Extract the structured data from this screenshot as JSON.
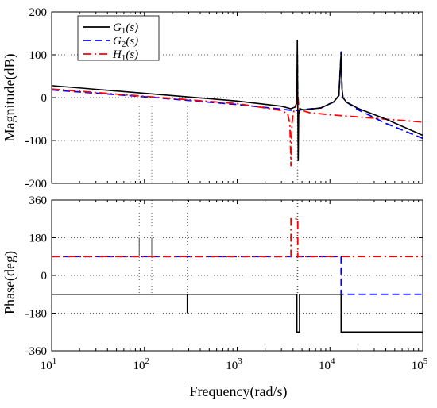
{
  "chart_data": [
    {
      "type": "line",
      "ylabel": "Magnitude(dB)",
      "xscale": "log",
      "xlim": [
        10,
        100000
      ],
      "ylim": [
        -200,
        200
      ],
      "yticks": [
        -200,
        -100,
        0,
        100,
        200
      ],
      "grid": "dotted reference lines at y=0, y=100, y=-100 and at notable frequencies",
      "legend": {
        "placement": "top-left",
        "entries": [
          {
            "base": "G",
            "sub": "1",
            "arg": "(s)"
          },
          {
            "base": "G",
            "sub": "2",
            "arg": "(s)"
          },
          {
            "base": "H",
            "sub": "1",
            "arg": "(s)"
          }
        ]
      },
      "series": [
        {
          "name": "G1(s)",
          "color": "#000000",
          "dash": "solid",
          "x": [
            10,
            100,
            1000,
            3000,
            3800,
            4200,
            4400,
            4450,
            4500,
            4550,
            4600,
            4700,
            4800,
            4900,
            5000,
            5500,
            8000,
            11000,
            12500,
            13200,
            13500,
            13800,
            15000,
            20000,
            40000,
            100000
          ],
          "y": [
            28,
            10,
            -8,
            -20,
            -26,
            -22,
            -12,
            135,
            -15,
            -148,
            -40,
            -28,
            -26,
            -27,
            -28,
            -28,
            -24,
            -10,
            5,
            105,
            20,
            0,
            -10,
            -25,
            -50,
            -88
          ]
        },
        {
          "name": "G2(s)",
          "color": "#0000ff",
          "dash": "dashed",
          "x": [
            10,
            100,
            1000,
            3000,
            4000,
            4500,
            5000,
            8000,
            11000,
            12500,
            13200,
            13500,
            13800,
            15000,
            20000,
            40000,
            100000
          ],
          "y": [
            18,
            2,
            -16,
            -27,
            -30,
            -30,
            -28,
            -24,
            -10,
            5,
            108,
            20,
            0,
            -10,
            -28,
            -60,
            -95
          ]
        },
        {
          "name": "H1(s)",
          "color": "#ff0000",
          "dash": "dashdot",
          "x": [
            10,
            100,
            1000,
            3000,
            3500,
            3700,
            3800,
            3900,
            4000,
            4100,
            4200,
            4300,
            4400,
            4460,
            4500,
            4600,
            4800,
            5000,
            6000,
            10000,
            30000,
            100000
          ],
          "y": [
            20,
            3,
            -14,
            -30,
            -38,
            -60,
            -160,
            -60,
            -38,
            -30,
            -25,
            -18,
            -5,
            100,
            10,
            -20,
            -28,
            -30,
            -35,
            -40,
            -48,
            -57
          ]
        }
      ]
    },
    {
      "type": "line",
      "xlabel": "Frequency(rad/s)",
      "ylabel": "Phase(deg)",
      "xscale": "log",
      "xlim": [
        10,
        100000
      ],
      "ylim": [
        -360,
        360
      ],
      "yticks": [
        -360,
        -180,
        0,
        180,
        360
      ],
      "xticks": [
        "10^1",
        "10^2",
        "10^3",
        "10^4",
        "10^5"
      ],
      "series": [
        {
          "name": "G1(s)",
          "color": "#000000",
          "dash": "solid",
          "x": [
            10,
            88,
            88,
            88,
            120,
            120,
            120,
            290,
            290,
            290,
            4400,
            4400,
            4700,
            4700,
            13200,
            13200,
            100000
          ],
          "y": [
            -90,
            -90,
            -90,
            -90,
            -90,
            -90,
            -90,
            -90,
            -180,
            -90,
            -90,
            -270,
            -270,
            -90,
            -90,
            -270,
            -270
          ]
        },
        {
          "name": "G2(s)",
          "color": "#0000ff",
          "dash": "dashed",
          "x": [
            10,
            13200,
            13200,
            100000
          ],
          "y": [
            90,
            90,
            -90,
            -90
          ]
        },
        {
          "name": "H1(s)",
          "color": "#ff0000",
          "dash": "dashdot",
          "x": [
            10,
            3800,
            3800,
            4500,
            4500,
            100000
          ],
          "y": [
            90,
            90,
            270,
            270,
            90,
            90
          ]
        }
      ],
      "spikes": [
        {
          "x": 88,
          "y": 180
        },
        {
          "x": 120,
          "y": 180
        }
      ]
    }
  ],
  "xaxis": {
    "label": "Frequency(rad/s)",
    "ticks": [
      {
        "value": 10,
        "base": "10",
        "exp": "1"
      },
      {
        "value": 100,
        "base": "10",
        "exp": "2"
      },
      {
        "value": 1000,
        "base": "10",
        "exp": "3"
      },
      {
        "value": 10000,
        "base": "10",
        "exp": "4"
      },
      {
        "value": 100000,
        "base": "10",
        "exp": "5"
      }
    ]
  },
  "reference_lines": {
    "verticals": [
      88,
      120,
      290,
      4450,
      4500
    ]
  }
}
